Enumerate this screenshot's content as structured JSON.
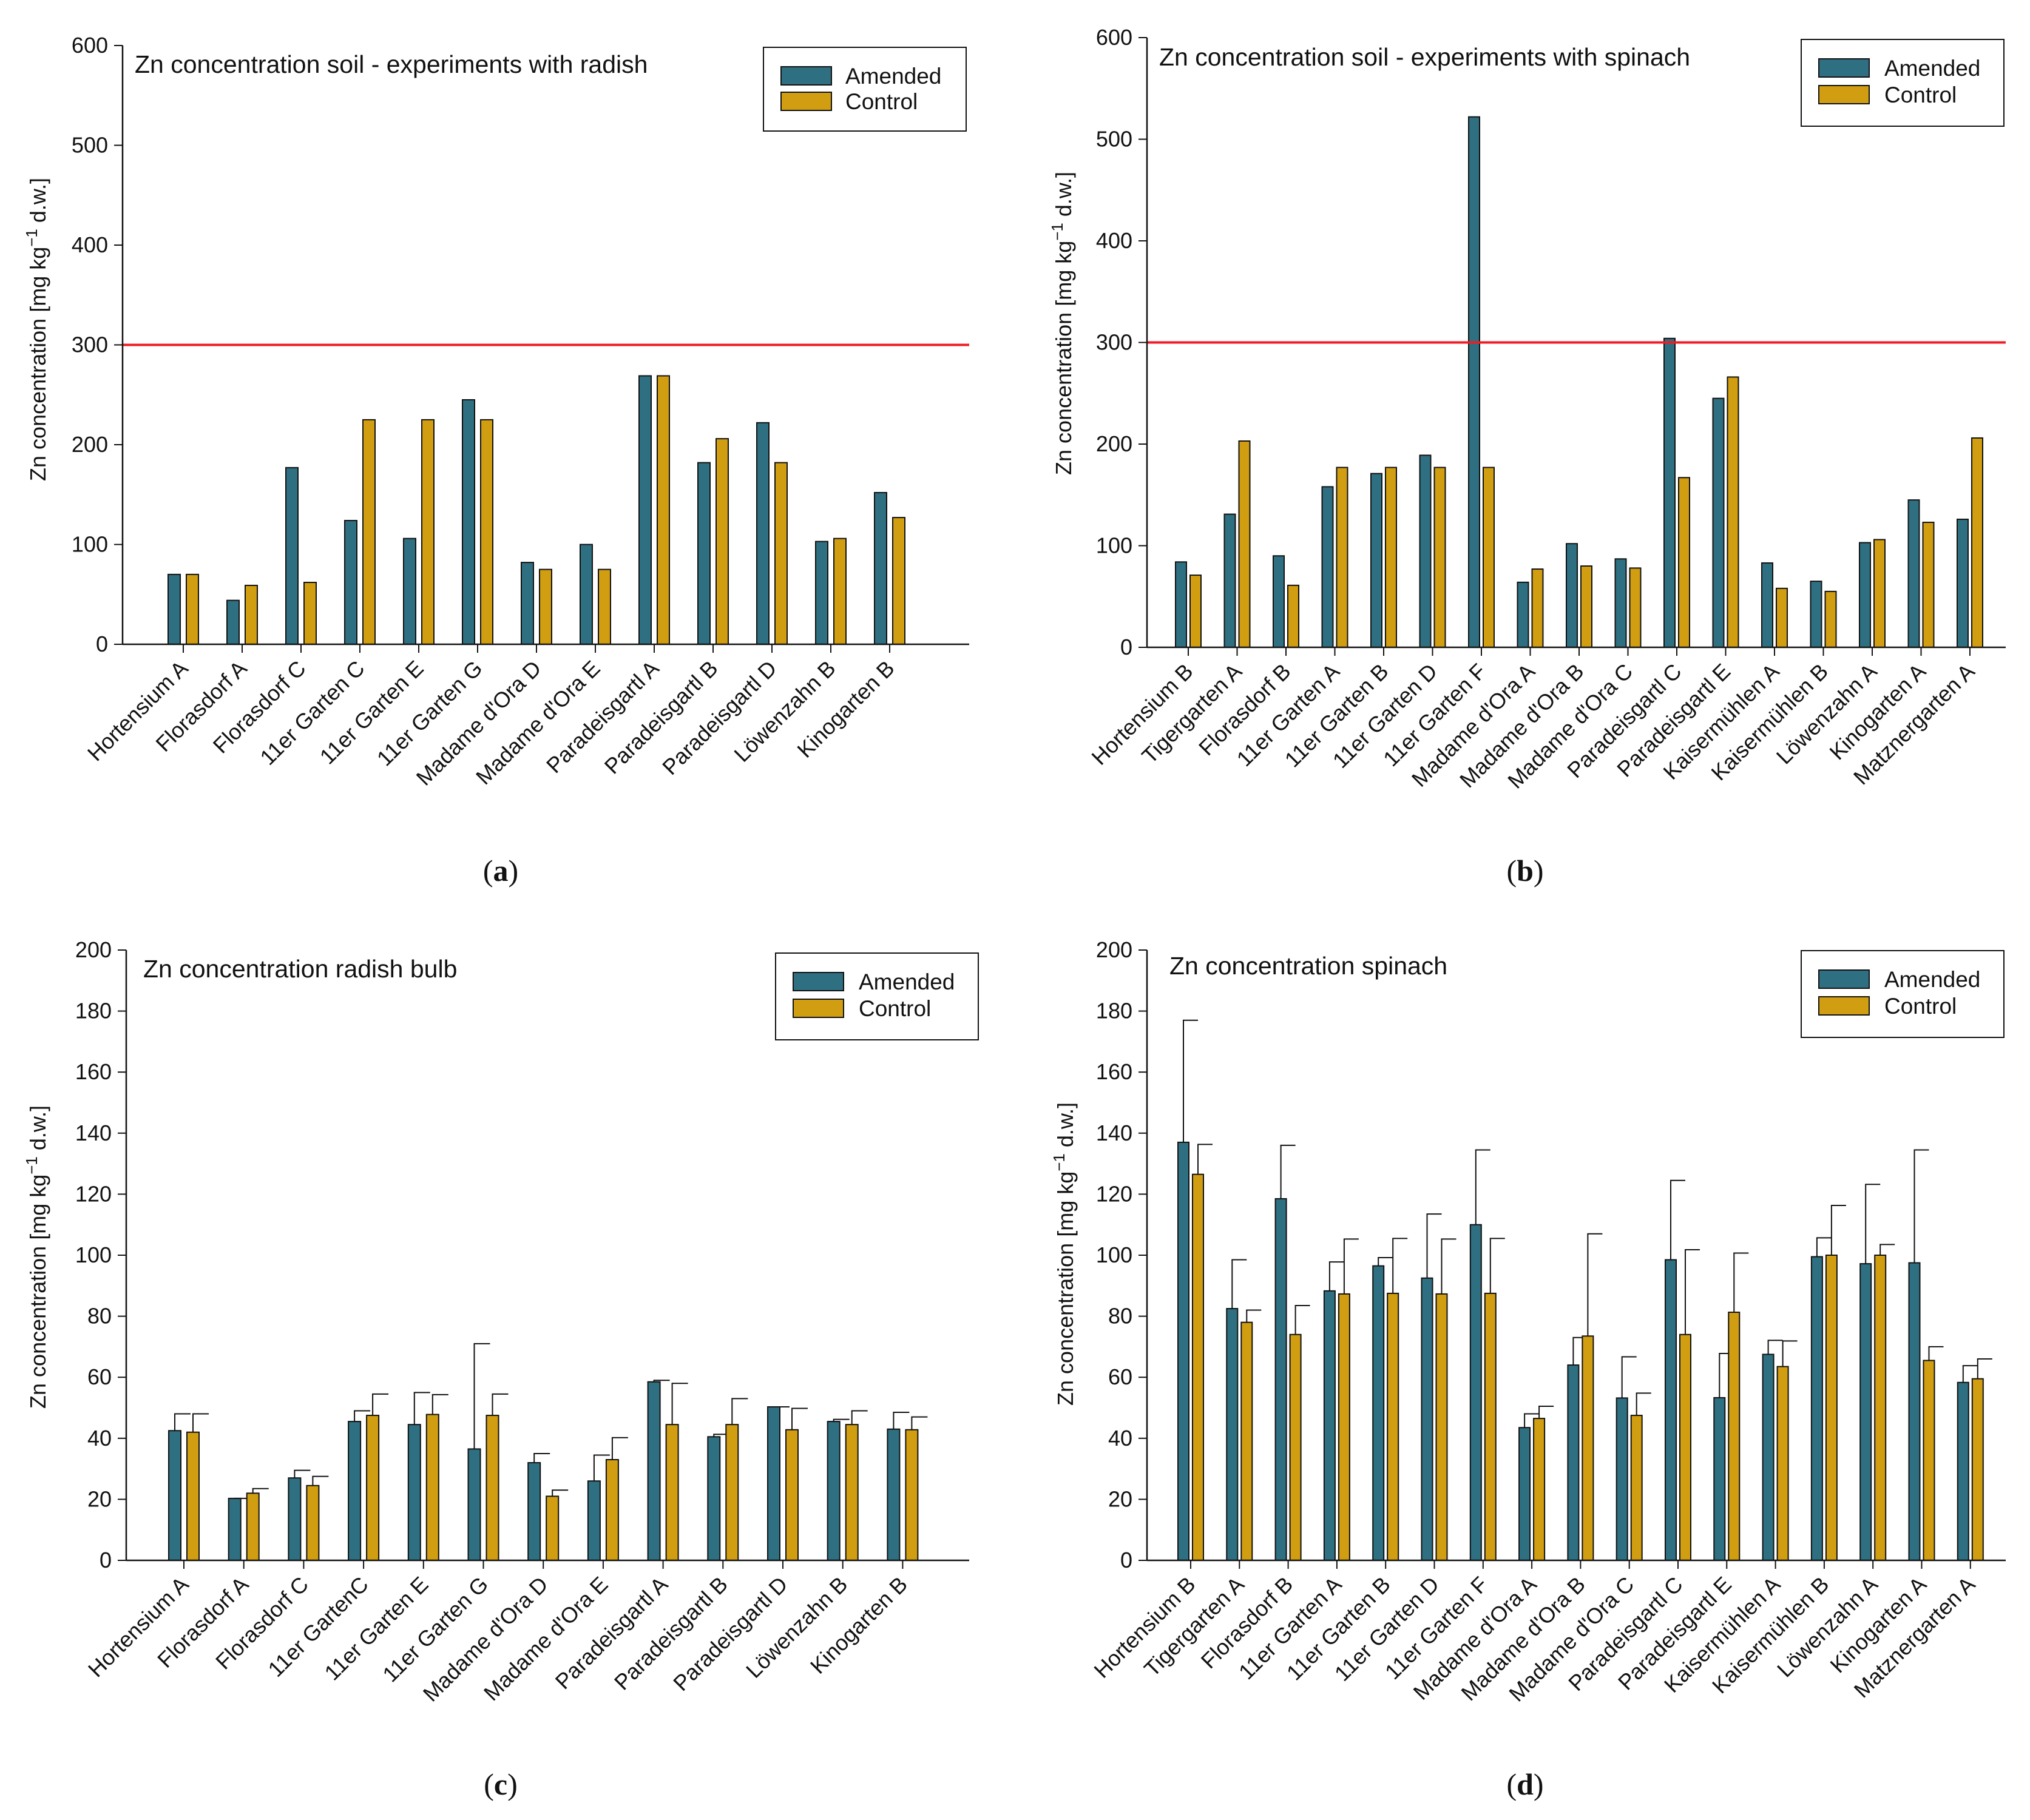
{
  "colors": {
    "amended": "#2e7082",
    "control": "#d19d11",
    "threshold": "#ee1c24"
  },
  "y_label_parts": {
    "main": "Zn concentration [mg kg",
    "sup": "−1",
    "tail": " d.w.]"
  },
  "legend": {
    "amended": "Amended",
    "control": "Control"
  },
  "chart_data": [
    {
      "id": "a",
      "caption_letter": "a",
      "type": "bar",
      "title": "Zn concentration soil - experiments with radish",
      "ylabel": "Zn concentration [mg kg−1 d.w.]",
      "ylim": [
        0,
        600
      ],
      "yticks": [
        0,
        100,
        200,
        300,
        400,
        500,
        600
      ],
      "threshold": 300,
      "categories": [
        "Hortensium A",
        "Florasdorf A",
        "Florasdorf C",
        "11er Garten C",
        "11er Garten E",
        "11er Garten G",
        "Madame d'Ora D",
        "Madame d'Ora E",
        "Paradeisgartl A",
        "Paradeisgartl B",
        "Paradeisgartl D",
        "Löwenzahn B",
        "Kinogarten B"
      ],
      "series": [
        {
          "name": "Amended",
          "values": [
            70,
            44,
            177,
            124,
            106,
            245,
            82,
            100,
            269,
            182,
            222,
            103,
            152
          ]
        },
        {
          "name": "Control",
          "values": [
            70,
            59,
            62,
            225,
            225,
            225,
            75,
            75,
            269,
            206,
            182,
            106,
            127
          ]
        }
      ]
    },
    {
      "id": "b",
      "caption_letter": "b",
      "type": "bar",
      "title": "Zn concentration soil - experiments with spinach",
      "ylabel": "Zn concentration [mg kg−1 d.w.]",
      "ylim": [
        0,
        600
      ],
      "yticks": [
        0,
        100,
        200,
        300,
        400,
        500,
        600
      ],
      "threshold": 300,
      "categories": [
        "Hortensium B",
        "Tigergarten A",
        "Florasdorf B",
        "11er Garten A",
        "11er Garten B",
        "11er Garten D",
        "11er Garten F",
        "Madame d'Ora A",
        "Madame d'Ora B",
        "Madame d'Ora C",
        "Paradeisgartl C",
        "Paradeisgartl E",
        "Kaisermühlen A",
        "Kaisermühlen B",
        "Löwenzahn A",
        "Kinogarten A",
        "Matznergarten A"
      ],
      "series": [
        {
          "name": "Amended",
          "values": [
            84,
            131,
            90,
            158,
            171,
            189,
            522,
            64,
            102,
            87,
            304,
            245,
            83,
            65,
            103,
            145,
            126
          ]
        },
        {
          "name": "Control",
          "values": [
            71,
            203,
            61,
            177,
            177,
            177,
            177,
            77,
            80,
            78,
            167,
            266,
            58,
            55,
            106,
            123,
            206
          ]
        }
      ]
    },
    {
      "id": "c",
      "caption_letter": "c",
      "type": "bar",
      "title": "Zn concentration radish bulb",
      "ylabel": "Zn concentration [mg kg−1 d.w.]",
      "ylim": [
        0,
        200
      ],
      "yticks": [
        0,
        20,
        40,
        60,
        80,
        100,
        120,
        140,
        160,
        180,
        200
      ],
      "categories": [
        "Hortensium A",
        "Florasdorf A",
        "Florasdorf C",
        "11er GartenC",
        "11er Garten E",
        "11er Garten G",
        "Madame d'Ora D",
        "Madame d'Ora E",
        "Paradeisgartl A",
        "Paradeisgartl B",
        "Paradeisgartl D",
        "Löwenzahn B",
        "Kinogarten B"
      ],
      "series": [
        {
          "name": "Amended",
          "values": [
            42.5,
            20.3,
            27,
            45.5,
            44.5,
            36.5,
            32,
            26,
            58.5,
            40.5,
            50.3,
            45.5,
            43
          ],
          "errors": [
            5.5,
            0,
            2.5,
            3.5,
            10.5,
            34.5,
            3,
            8.5,
            0.5,
            0.8,
            0,
            0.7,
            5.5
          ]
        },
        {
          "name": "Control",
          "values": [
            42,
            22,
            24.5,
            47.5,
            47.8,
            47.5,
            21,
            33,
            44.5,
            44.5,
            42.8,
            44.5,
            42.8
          ],
          "errors": [
            6,
            1.5,
            3,
            7,
            6.5,
            7,
            2,
            7.2,
            13.5,
            8.5,
            7,
            4.5,
            4.2
          ]
        }
      ]
    },
    {
      "id": "d",
      "caption_letter": "d",
      "type": "bar",
      "title": "Zn concentration spinach",
      "ylabel": "Zn concentration [mg kg−1 d.w.]",
      "ylim": [
        0,
        200
      ],
      "yticks": [
        0,
        20,
        40,
        60,
        80,
        100,
        120,
        140,
        160,
        180,
        200
      ],
      "categories": [
        "Hortensium B",
        "Tigergarten A",
        "Florasdorf B",
        "11er Garten A",
        "11er Garten B",
        "11er Garten D",
        "11er Garten F",
        "Madame d'Ora A",
        "Madame d'Ora B",
        "Madame d'Ora C",
        "Paradeisgartl C",
        "Paradeisgartl E",
        "Kaisermühlen A",
        "Kaisermühlen B",
        "Löwenzahn A",
        "Kinogarten A",
        "Matznergarten A"
      ],
      "series": [
        {
          "name": "Amended",
          "values": [
            137,
            82.5,
            118.5,
            88.3,
            96.5,
            92.5,
            110,
            43.5,
            64,
            53.2,
            98.5,
            53.3,
            67.5,
            99.5,
            97.2,
            97.5,
            58.3
          ],
          "errors": [
            40,
            16,
            17.5,
            9.5,
            2.7,
            21,
            24.5,
            4.5,
            9,
            13.5,
            26,
            14.5,
            4.6,
            6.2,
            26,
            37,
            5.5
          ]
        },
        {
          "name": "Control",
          "values": [
            126.5,
            78,
            74,
            87.3,
            87.5,
            87.3,
            87.5,
            46.5,
            73.5,
            47.5,
            74,
            81.3,
            63.5,
            100,
            100,
            65.5,
            59.5
          ],
          "errors": [
            9.8,
            4,
            9.5,
            18,
            18,
            18,
            18,
            4,
            33.5,
            7.3,
            27.8,
            19.4,
            8.4,
            16.3,
            3.5,
            4.5,
            6.5
          ]
        }
      ]
    }
  ]
}
